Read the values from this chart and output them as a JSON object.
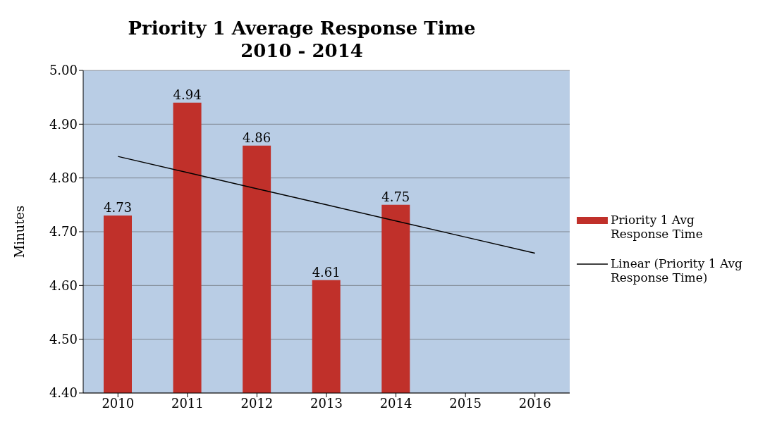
{
  "chart_data": {
    "type": "bar",
    "title": "Priority 1 Average Response Time\n2010 - 2014",
    "ylabel": "Minutes",
    "categories": [
      "2010",
      "2011",
      "2012",
      "2013",
      "2014",
      "2015",
      "2016"
    ],
    "series": [
      {
        "name": "Priority 1 Avg Response Time",
        "color": "#c0302a",
        "values": [
          4.73,
          4.94,
          4.86,
          4.61,
          4.75,
          null,
          null
        ],
        "value_labels": [
          "4.73",
          "4.94",
          "4.86",
          "4.61",
          "4.75",
          null,
          null
        ]
      },
      {
        "name": "Linear (Priority 1 Avg Response Time)",
        "type": "line",
        "color": "#000000",
        "values": [
          4.84,
          4.81,
          4.78,
          4.75,
          4.72,
          4.69,
          4.66
        ]
      }
    ],
    "ylim": [
      4.4,
      5.0
    ],
    "yticks": [
      {
        "value": 4.4,
        "label": "4.40"
      },
      {
        "value": 4.5,
        "label": "4.50"
      },
      {
        "value": 4.6,
        "label": "4.60"
      },
      {
        "value": 4.7,
        "label": "4.70"
      },
      {
        "value": 4.8,
        "label": "4.80"
      },
      {
        "value": 4.9,
        "label": "4.90"
      },
      {
        "value": 5.0,
        "label": "5.00"
      }
    ],
    "grid": "y",
    "legend": "right",
    "marker": "none",
    "line_style": "solid"
  }
}
